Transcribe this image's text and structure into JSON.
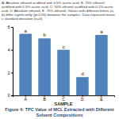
{
  "chart_data": {
    "type": "bar",
    "title": "Figure 4: TPC Value of MCL Extracted with Different Solvent Compositions",
    "subtitle": "A: Absolute ethanol acidified with 0.5% acetic acid, B: 70% ethanol acidified with 0.5% acetic acid, C: 50% ethanol acidified with 0.1% acetic acid, D: Absolute ethanol, E: 70% ethanol. Values with different letters (a, b) differ significantly (p<0.05) between the samples. Data represent mean ± standard deviation (n=3).",
    "x_label": "SAMPLE",
    "categories": [
      "A",
      "B",
      "C",
      "D",
      "E"
    ],
    "values": [
      5.4,
      5.0,
      4.0,
      1.6,
      5.3
    ],
    "annotations": [
      "a",
      "b",
      "c",
      "d",
      "a"
    ],
    "color": "#4f81bd",
    "ylim": [
      0,
      6
    ],
    "yticks": [
      0,
      2,
      4,
      6
    ],
    "grid": false
  }
}
